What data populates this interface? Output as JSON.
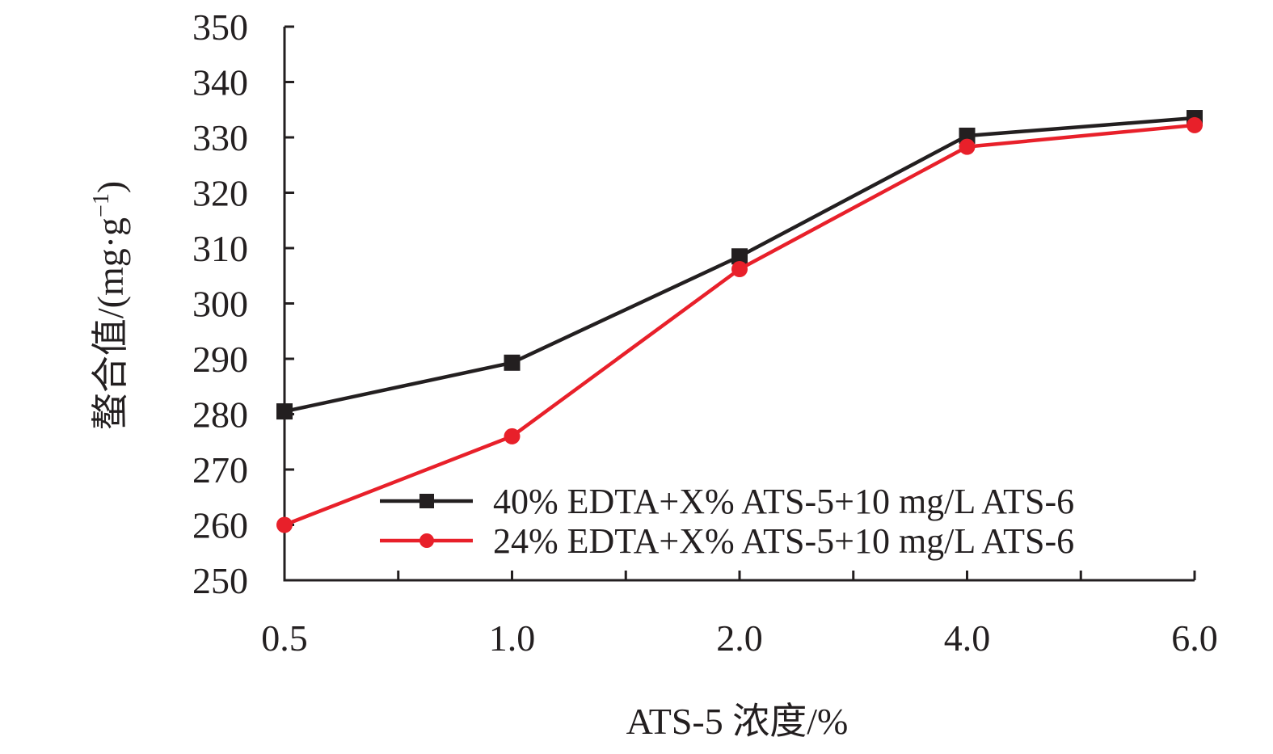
{
  "chart_data": {
    "type": "line",
    "title": "",
    "xlabel": "ATS-5 浓度/%",
    "ylabel_main": "螯合值/(mg·g",
    "ylabel_sup": "−1",
    "ylabel_close": ")",
    "categories": [
      "0.5",
      "1.0",
      "2.0",
      "4.0",
      "6.0"
    ],
    "ylim": [
      250,
      350
    ],
    "yticks": [
      "250",
      "260",
      "270",
      "280",
      "290",
      "300",
      "310",
      "320",
      "330",
      "340",
      "350"
    ],
    "grid": false,
    "legend_position": "lower-right",
    "series": [
      {
        "name": "40% EDTA+X% ATS-5+10 mg/L ATS-6",
        "color": "#231f20",
        "marker": "square",
        "values": [
          280.5,
          289.3,
          308.5,
          330.3,
          333.5
        ]
      },
      {
        "name": "24% EDTA+X% ATS-5+10 mg/L ATS-6",
        "color": "#e8202a",
        "marker": "circle",
        "values": [
          260.0,
          276.0,
          306.2,
          328.3,
          332.2
        ]
      }
    ]
  }
}
